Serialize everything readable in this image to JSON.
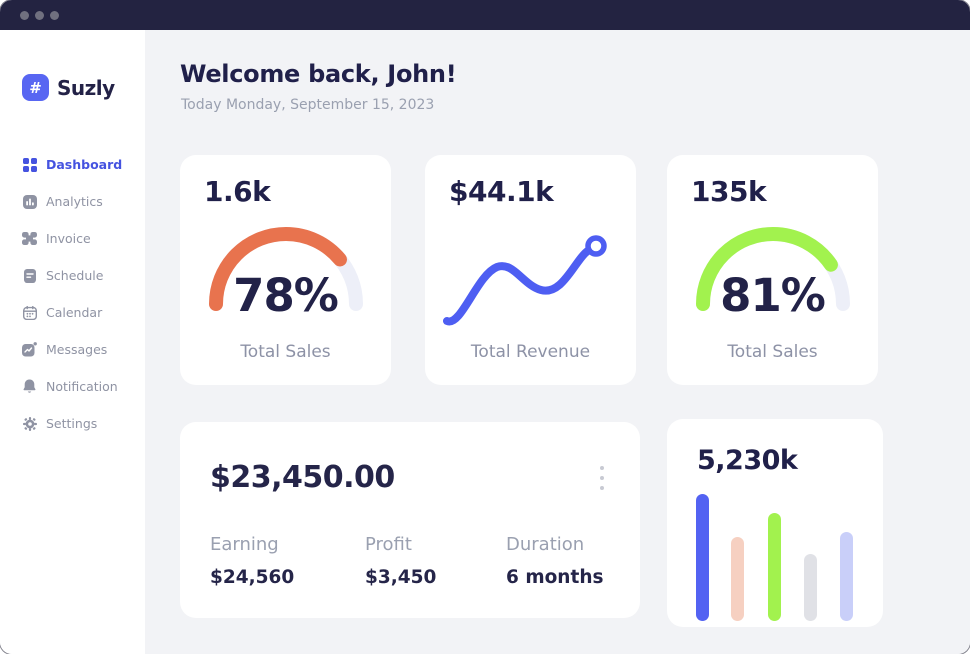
{
  "window": {
    "titlebar_color": "#232341",
    "control_dots": 3
  },
  "sidebar": {
    "logo": {
      "icon": "#",
      "text": "Suzly"
    },
    "items": [
      {
        "label": "Dashboard",
        "icon": "dashboard-icon",
        "active": true
      },
      {
        "label": "Analytics",
        "icon": "analytics-icon",
        "active": false
      },
      {
        "label": "Invoice",
        "icon": "invoice-icon",
        "active": false
      },
      {
        "label": "Schedule",
        "icon": "schedule-icon",
        "active": false
      },
      {
        "label": "Calendar",
        "icon": "calendar-icon",
        "active": false
      },
      {
        "label": "Messages",
        "icon": "messages-icon",
        "active": false
      },
      {
        "label": "Notification",
        "icon": "notification-icon",
        "active": false
      },
      {
        "label": "Settings",
        "icon": "settings-icon",
        "active": false
      }
    ]
  },
  "header": {
    "title": "Welcome back, John!",
    "subtitle": "Today Monday, September 15, 2023"
  },
  "stat_cards": [
    {
      "stat": "1.6k",
      "percent_label": "78%",
      "label": "Total Sales"
    },
    {
      "stat": "$44.1k",
      "label": "Total Revenue"
    },
    {
      "stat": "135k",
      "percent_label": "81%",
      "label": "Total Sales"
    }
  ],
  "earnings_card": {
    "total": "$23,450.00",
    "columns": [
      {
        "label": "Earning",
        "value": "$24,560"
      },
      {
        "label": "Profit",
        "value": "$3,450"
      },
      {
        "label": "Duration",
        "value": "6 months"
      }
    ]
  },
  "bar_card": {
    "stat": "5,230k"
  },
  "chart_data": [
    {
      "type": "gauge",
      "title": "Total Sales",
      "stat": "1.6k",
      "percent": 78,
      "color": "#e8734e",
      "track_color": "#edeff8"
    },
    {
      "type": "line",
      "title": "Total Revenue",
      "stat": "$44.1k",
      "color": "#4e5ef2",
      "shape": "wavy upward trend ending in ring marker"
    },
    {
      "type": "gauge",
      "title": "Total Sales",
      "stat": "135k",
      "percent": 81,
      "color": "#a2f24e",
      "track_color": "#edeff8"
    },
    {
      "type": "bar",
      "title": "5,230k",
      "values": [
        127,
        84,
        108,
        67,
        89
      ],
      "colors": [
        "#5362f2",
        "#f6d0c1",
        "#a2f24e",
        "#e0e1e6",
        "#c9cff9"
      ],
      "x_positions": [
        29,
        64,
        101,
        137,
        173
      ]
    }
  ]
}
